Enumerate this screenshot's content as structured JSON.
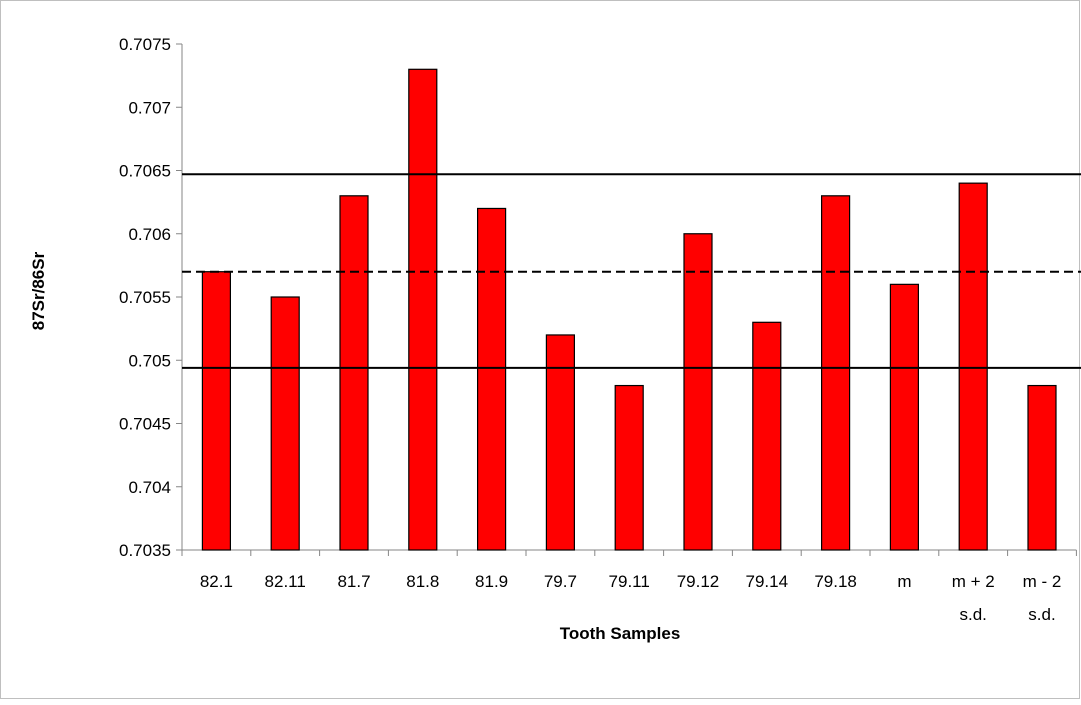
{
  "chart_data": {
    "type": "bar",
    "title": "",
    "xlabel": "Tooth Samples",
    "ylabel": "87Sr/86Sr",
    "categories": [
      [
        "82.1"
      ],
      [
        "82.11"
      ],
      [
        "81.7"
      ],
      [
        "81.8"
      ],
      [
        "81.9"
      ],
      [
        "79.7"
      ],
      [
        "79.11"
      ],
      [
        "79.12"
      ],
      [
        "79.14"
      ],
      [
        "79.18"
      ],
      [
        "m"
      ],
      [
        "m + 2",
        "s.d."
      ],
      [
        "m - 2",
        "s.d."
      ]
    ],
    "values": [
      0.7057,
      0.7055,
      0.7063,
      0.7073,
      0.7062,
      0.7052,
      0.7048,
      0.706,
      0.7053,
      0.7063,
      0.7056,
      0.7064,
      0.7048
    ],
    "ylim": [
      0.7035,
      0.7075
    ],
    "yticks": [
      "0.7035",
      "0.704",
      "0.7045",
      "0.705",
      "0.7055",
      "0.706",
      "0.7065",
      "0.707",
      "0.7075"
    ],
    "reference_lines": [
      {
        "value": 0.70647,
        "style": "solid"
      },
      {
        "value": 0.7057,
        "style": "dashed"
      },
      {
        "value": 0.70494,
        "style": "solid"
      }
    ],
    "bar_color": "#ff0000",
    "bar_border_color": "#000000",
    "grid": false,
    "legend": "none"
  }
}
